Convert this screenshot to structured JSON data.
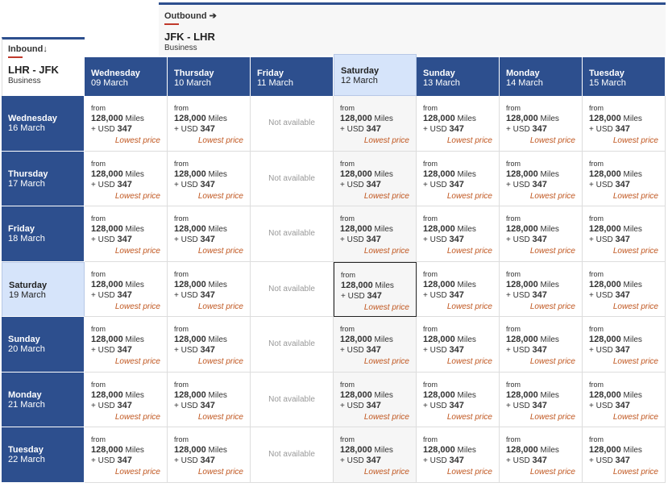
{
  "outbound": {
    "label": "Outbound",
    "route": "JFK - LHR",
    "cabin": "Business"
  },
  "inbound": {
    "label": "Inbound",
    "route": "LHR - JFK",
    "cabin": "Business"
  },
  "columns": [
    {
      "day": "Wednesday",
      "date": "09 March"
    },
    {
      "day": "Thursday",
      "date": "10 March"
    },
    {
      "day": "Friday",
      "date": "11 March"
    },
    {
      "day": "Saturday",
      "date": "12 March"
    },
    {
      "day": "Sunday",
      "date": "13 March"
    },
    {
      "day": "Monday",
      "date": "14 March"
    },
    {
      "day": "Tuesday",
      "date": "15 March"
    }
  ],
  "rows": [
    {
      "day": "Wednesday",
      "date": "16 March",
      "cells": [
        [
          "from",
          "128,000",
          "Miles",
          "+ USD",
          "347",
          "Lowest price"
        ],
        [
          "from",
          "128,000",
          "Miles",
          "+ USD",
          "347",
          "Lowest price"
        ],
        [
          "Not available"
        ],
        [
          "from",
          "128,000",
          "Miles",
          "+ USD",
          "347",
          "Lowest price"
        ],
        [
          "from",
          "128,000",
          "Miles",
          "+ USD",
          "347",
          "Lowest price"
        ],
        [
          "from",
          "128,000",
          "Miles",
          "+ USD",
          "347",
          "Lowest price"
        ],
        [
          "from",
          "128,000",
          "Miles",
          "+ USD",
          "347",
          "Lowest price"
        ]
      ]
    },
    {
      "day": "Thursday",
      "date": "17 March",
      "cells": [
        [
          "from",
          "128,000",
          "Miles",
          "+ USD",
          "347",
          "Lowest price"
        ],
        [
          "from",
          "128,000",
          "Miles",
          "+ USD",
          "347",
          "Lowest price"
        ],
        [
          "Not available"
        ],
        [
          "from",
          "128,000",
          "Miles",
          "+ USD",
          "347",
          "Lowest price"
        ],
        [
          "from",
          "128,000",
          "Miles",
          "+ USD",
          "347",
          "Lowest price"
        ],
        [
          "from",
          "128,000",
          "Miles",
          "+ USD",
          "347",
          "Lowest price"
        ],
        [
          "from",
          "128,000",
          "Miles",
          "+ USD",
          "347",
          "Lowest price"
        ]
      ]
    },
    {
      "day": "Friday",
      "date": "18 March",
      "cells": [
        [
          "from",
          "128,000",
          "Miles",
          "+ USD",
          "347",
          "Lowest price"
        ],
        [
          "from",
          "128,000",
          "Miles",
          "+ USD",
          "347",
          "Lowest price"
        ],
        [
          "Not available"
        ],
        [
          "from",
          "128,000",
          "Miles",
          "+ USD",
          "347",
          "Lowest price"
        ],
        [
          "from",
          "128,000",
          "Miles",
          "+ USD",
          "347",
          "Lowest price"
        ],
        [
          "from",
          "128,000",
          "Miles",
          "+ USD",
          "347",
          "Lowest price"
        ],
        [
          "from",
          "128,000",
          "Miles",
          "+ USD",
          "347",
          "Lowest price"
        ]
      ]
    },
    {
      "day": "Saturday",
      "date": "19 March",
      "cells": [
        [
          "from",
          "128,000",
          "Miles",
          "+ USD",
          "347",
          "Lowest price"
        ],
        [
          "from",
          "128,000",
          "Miles",
          "+ USD",
          "347",
          "Lowest price"
        ],
        [
          "Not available"
        ],
        [
          "from",
          "128,000",
          "Miles",
          "+ USD",
          "347",
          "Lowest price"
        ],
        [
          "from",
          "128,000",
          "Miles",
          "+ USD",
          "347",
          "Lowest price"
        ],
        [
          "from",
          "128,000",
          "Miles",
          "+ USD",
          "347",
          "Lowest price"
        ],
        [
          "from",
          "128,000",
          "Miles",
          "+ USD",
          "347",
          "Lowest price"
        ]
      ]
    },
    {
      "day": "Sunday",
      "date": "20 March",
      "cells": [
        [
          "from",
          "128,000",
          "Miles",
          "+ USD",
          "347",
          "Lowest price"
        ],
        [
          "from",
          "128,000",
          "Miles",
          "+ USD",
          "347",
          "Lowest price"
        ],
        [
          "Not available"
        ],
        [
          "from",
          "128,000",
          "Miles",
          "+ USD",
          "347",
          "Lowest price"
        ],
        [
          "from",
          "128,000",
          "Miles",
          "+ USD",
          "347",
          "Lowest price"
        ],
        [
          "from",
          "128,000",
          "Miles",
          "+ USD",
          "347",
          "Lowest price"
        ],
        [
          "from",
          "128,000",
          "Miles",
          "+ USD",
          "347",
          "Lowest price"
        ]
      ]
    },
    {
      "day": "Monday",
      "date": "21 March",
      "cells": [
        [
          "from",
          "128,000",
          "Miles",
          "+ USD",
          "347",
          "Lowest price"
        ],
        [
          "from",
          "128,000",
          "Miles",
          "+ USD",
          "347",
          "Lowest price"
        ],
        [
          "Not available"
        ],
        [
          "from",
          "128,000",
          "Miles",
          "+ USD",
          "347",
          "Lowest price"
        ],
        [
          "from",
          "128,000",
          "Miles",
          "+ USD",
          "347",
          "Lowest price"
        ],
        [
          "from",
          "128,000",
          "Miles",
          "+ USD",
          "347",
          "Lowest price"
        ],
        [
          "from",
          "128,000",
          "Miles",
          "+ USD",
          "347",
          "Lowest price"
        ]
      ]
    },
    {
      "day": "Tuesday",
      "date": "22 March",
      "cells": [
        [
          "from",
          "128,000",
          "Miles",
          "+ USD",
          "347",
          "Lowest price"
        ],
        [
          "from",
          "128,000",
          "Miles",
          "+ USD",
          "347",
          "Lowest price"
        ],
        [
          "Not available"
        ],
        [
          "from",
          "128,000",
          "Miles",
          "+ USD",
          "347",
          "Lowest price"
        ],
        [
          "from",
          "128,000",
          "Miles",
          "+ USD",
          "347",
          "Lowest price"
        ],
        [
          "from",
          "128,000",
          "Miles",
          "+ USD",
          "347",
          "Lowest price"
        ],
        [
          "from",
          "128,000",
          "Miles",
          "+ USD",
          "347",
          "Lowest price"
        ]
      ]
    }
  ]
}
